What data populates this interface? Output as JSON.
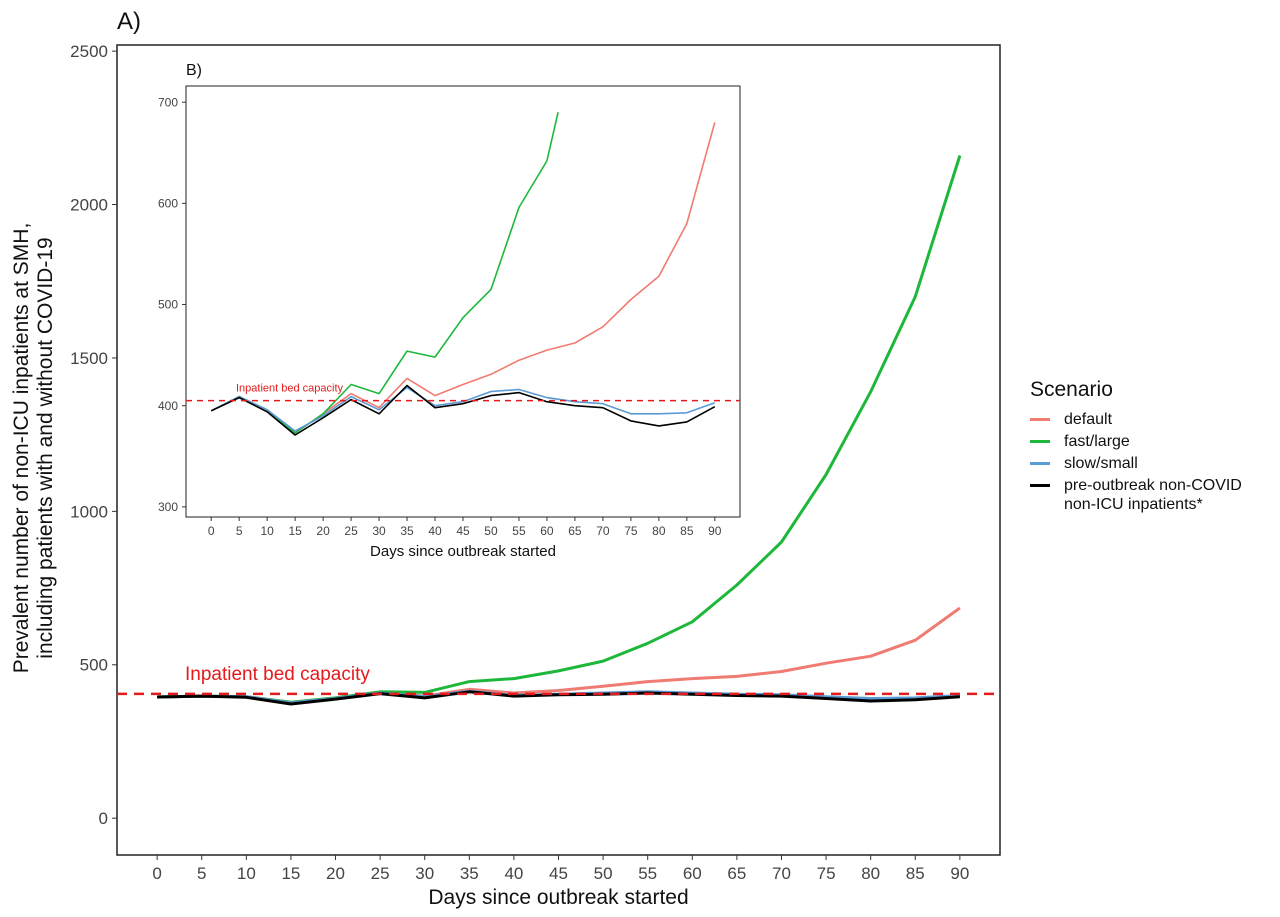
{
  "chart_data": [
    {
      "panel": "A)",
      "type": "line",
      "xlabel": "Days since outbreak started",
      "ylabel": "Prevalent number of non-ICU inpatients at SMH,\nincluding patients with and without COVID-19",
      "xlim": [
        -4.5,
        94.5
      ],
      "ylim": [
        -120,
        2520
      ],
      "xticks": [
        0,
        5,
        10,
        15,
        20,
        25,
        30,
        35,
        40,
        45,
        50,
        55,
        60,
        65,
        70,
        75,
        80,
        85,
        90
      ],
      "yticks": [
        0,
        500,
        1000,
        1500,
        2000,
        2500
      ],
      "grid": false,
      "reference_line": {
        "y": 405,
        "label": "Inpatient bed capacity",
        "color": "#e41a1c",
        "style": "dashed"
      },
      "series": [
        {
          "name": "default",
          "color": "#f07b72",
          "points": [
            [
              0,
              395
            ],
            [
              5,
              398
            ],
            [
              10,
              396
            ],
            [
              15,
              378
            ],
            [
              20,
              392
            ],
            [
              25,
              410
            ],
            [
              30,
              398
            ],
            [
              35,
              420
            ],
            [
              40,
              408
            ],
            [
              45,
              416
            ],
            [
              50,
              430
            ],
            [
              55,
              445
            ],
            [
              60,
              455
            ],
            [
              65,
              462
            ],
            [
              70,
              478
            ],
            [
              75,
              505
            ],
            [
              80,
              528
            ],
            [
              85,
              580
            ],
            [
              90,
              685
            ]
          ]
        },
        {
          "name": "fast/large",
          "color": "#1db83b",
          "points": [
            [
              0,
              395
            ],
            [
              5,
              398
            ],
            [
              10,
              396
            ],
            [
              15,
              378
            ],
            [
              20,
              392
            ],
            [
              25,
              412
            ],
            [
              30,
              410
            ],
            [
              35,
              445
            ],
            [
              40,
              455
            ],
            [
              45,
              480
            ],
            [
              50,
              512
            ],
            [
              55,
              570
            ],
            [
              60,
              640
            ],
            [
              65,
              760
            ],
            [
              70,
              900
            ],
            [
              75,
              1120
            ],
            [
              80,
              1390
            ],
            [
              85,
              1700
            ],
            [
              90,
              2160
            ]
          ]
        },
        {
          "name": "slow/small",
          "color": "#5b9bd5",
          "points": [
            [
              0,
              395
            ],
            [
              5,
              398
            ],
            [
              10,
              396
            ],
            [
              15,
              376
            ],
            [
              20,
              390
            ],
            [
              25,
              408
            ],
            [
              30,
              396
            ],
            [
              35,
              414
            ],
            [
              40,
              400
            ],
            [
              45,
              404
            ],
            [
              50,
              408
            ],
            [
              55,
              412
            ],
            [
              60,
              408
            ],
            [
              65,
              404
            ],
            [
              70,
              402
            ],
            [
              75,
              396
            ],
            [
              80,
              390
            ],
            [
              85,
              392
            ],
            [
              90,
              400
            ]
          ]
        },
        {
          "name": "pre-outbreak non-COVID\n non-ICU inpatients*",
          "color": "#000000",
          "points": [
            [
              0,
              395
            ],
            [
              5,
              398
            ],
            [
              10,
              394
            ],
            [
              15,
              372
            ],
            [
              20,
              388
            ],
            [
              25,
              406
            ],
            [
              30,
              392
            ],
            [
              35,
              412
            ],
            [
              40,
              398
            ],
            [
              45,
              402
            ],
            [
              50,
              404
            ],
            [
              55,
              408
            ],
            [
              60,
              404
            ],
            [
              65,
              400
            ],
            [
              70,
              398
            ],
            [
              75,
              390
            ],
            [
              80,
              382
            ],
            [
              85,
              386
            ],
            [
              90,
              396
            ]
          ]
        }
      ]
    },
    {
      "panel": "B)",
      "type": "line",
      "xlabel": "Days since outbreak started",
      "ylabel": "",
      "xlim": [
        -4.5,
        94.5
      ],
      "ylim": [
        290,
        716
      ],
      "xticks": [
        0,
        5,
        10,
        15,
        20,
        25,
        30,
        35,
        40,
        45,
        50,
        55,
        60,
        65,
        70,
        75,
        80,
        85,
        90
      ],
      "yticks": [
        300,
        400,
        500,
        600,
        700
      ],
      "grid": false,
      "reference_line": {
        "y": 405,
        "label": "Inpatient bed capacity",
        "color": "#e41a1c",
        "style": "dashed"
      },
      "series": [
        {
          "name": "default",
          "color": "#f07b72",
          "points": [
            [
              0,
              395
            ],
            [
              5,
              409
            ],
            [
              10,
              396
            ],
            [
              15,
              373
            ],
            [
              20,
              392
            ],
            [
              25,
              412
            ],
            [
              30,
              398
            ],
            [
              35,
              427
            ],
            [
              40,
              410
            ],
            [
              45,
              421
            ],
            [
              50,
              431
            ],
            [
              55,
              445
            ],
            [
              60,
              455
            ],
            [
              65,
              462
            ],
            [
              70,
              478
            ],
            [
              75,
              505
            ],
            [
              80,
              528
            ],
            [
              85,
              580
            ],
            [
              90,
              680
            ]
          ]
        },
        {
          "name": "fast/large",
          "color": "#1db83b",
          "points": [
            [
              0,
              395
            ],
            [
              5,
              409
            ],
            [
              10,
              396
            ],
            [
              15,
              373
            ],
            [
              20,
              392
            ],
            [
              25,
              421
            ],
            [
              30,
              412
            ],
            [
              35,
              454
            ],
            [
              40,
              448
            ],
            [
              45,
              487
            ],
            [
              50,
              515
            ],
            [
              55,
              596
            ],
            [
              60,
              642
            ],
            [
              62,
              690
            ]
          ]
        },
        {
          "name": "slow/small",
          "color": "#5b9bd5",
          "points": [
            [
              0,
              395
            ],
            [
              5,
              409
            ],
            [
              10,
              396
            ],
            [
              15,
              375
            ],
            [
              20,
              390
            ],
            [
              25,
              409
            ],
            [
              30,
              396
            ],
            [
              35,
              418
            ],
            [
              40,
              400
            ],
            [
              45,
              404
            ],
            [
              50,
              414
            ],
            [
              55,
              416
            ],
            [
              60,
              408
            ],
            [
              65,
              404
            ],
            [
              70,
              402
            ],
            [
              75,
              392
            ],
            [
              80,
              392
            ],
            [
              85,
              393
            ],
            [
              90,
              403
            ]
          ]
        },
        {
          "name": "pre-outbreak non-COVID\n non-ICU inpatients*",
          "color": "#000000",
          "points": [
            [
              0,
              395
            ],
            [
              5,
              408
            ],
            [
              10,
              394
            ],
            [
              15,
              371
            ],
            [
              20,
              388
            ],
            [
              25,
              406
            ],
            [
              30,
              392
            ],
            [
              35,
              420
            ],
            [
              40,
              398
            ],
            [
              45,
              402
            ],
            [
              50,
              410
            ],
            [
              55,
              413
            ],
            [
              60,
              404
            ],
            [
              65,
              400
            ],
            [
              70,
              398
            ],
            [
              75,
              385
            ],
            [
              80,
              380
            ],
            [
              85,
              384
            ],
            [
              90,
              399
            ]
          ]
        }
      ]
    }
  ],
  "legend": {
    "title": "Scenario",
    "items": [
      {
        "label": "default",
        "color": "#f07b72"
      },
      {
        "label": "fast/large",
        "color": "#1db83b"
      },
      {
        "label": "slow/small",
        "color": "#5b9bd5"
      },
      {
        "label": "pre-outbreak non-COVID\n non-ICU inpatients*",
        "color": "#000000"
      }
    ]
  }
}
